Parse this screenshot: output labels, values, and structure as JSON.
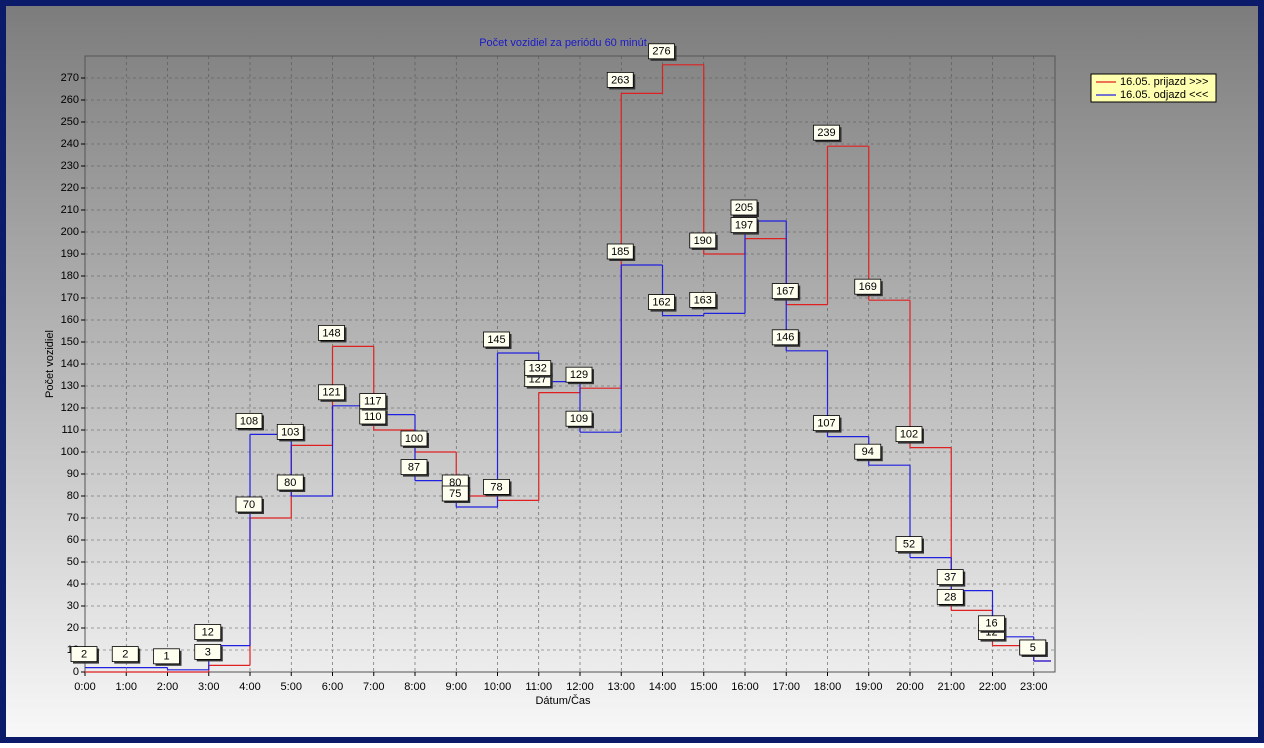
{
  "chart_data": {
    "type": "step",
    "title": "Počet vozidiel za periódu 60 minút",
    "x_label": "Dátum/Čas",
    "y_label": "Počet vozidiel",
    "categories": [
      "0:00",
      "1:00",
      "2:00",
      "3:00",
      "4:00",
      "5:00",
      "6:00",
      "7:00",
      "8:00",
      "9:00",
      "10:00",
      "11:00",
      "12:00",
      "13:00",
      "14:00",
      "15:00",
      "16:00",
      "17:00",
      "18:00",
      "19:00",
      "20:00",
      "21:00",
      "22:00",
      "23:00"
    ],
    "series": [
      {
        "name": "16.05.  prijazd >>>",
        "color": "#e02020",
        "values": [
          0,
          0,
          0,
          3,
          70,
          103,
          148,
          110,
          100,
          80,
          78,
          127,
          129,
          263,
          276,
          190,
          197,
          167,
          239,
          169,
          102,
          28,
          12,
          5
        ]
      },
      {
        "name": "16.05.  odjazd <<<",
        "color": "#2020e0",
        "values": [
          2,
          2,
          1,
          12,
          108,
          80,
          121,
          117,
          87,
          75,
          145,
          132,
          109,
          185,
          162,
          163,
          205,
          146,
          107,
          94,
          52,
          37,
          16,
          5
        ]
      }
    ],
    "ylim": [
      0,
      280
    ],
    "yticks": [
      0,
      10,
      20,
      30,
      40,
      50,
      60,
      70,
      80,
      90,
      100,
      110,
      120,
      130,
      140,
      150,
      160,
      170,
      180,
      190,
      200,
      210,
      220,
      230,
      240,
      250,
      260,
      270
    ],
    "grid": true,
    "legend": "top-right"
  }
}
